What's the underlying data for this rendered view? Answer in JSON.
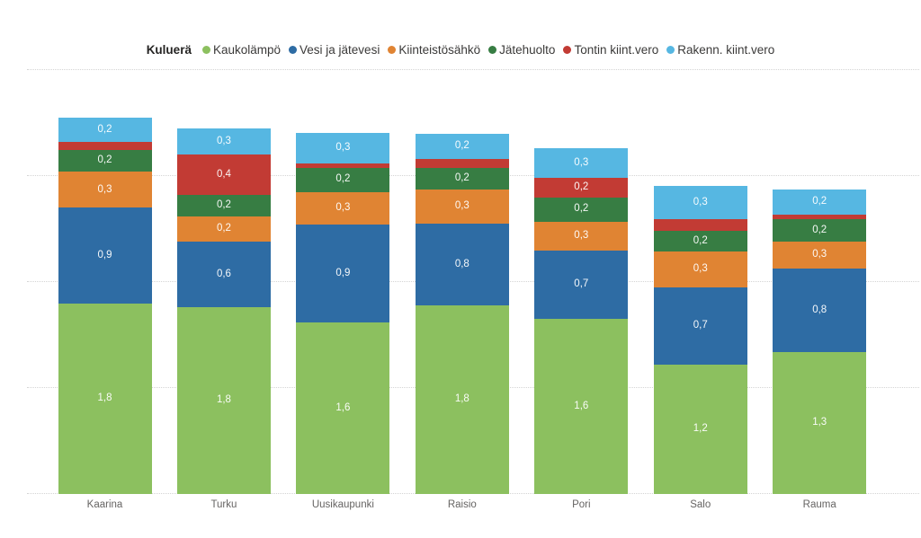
{
  "legend": {
    "title": "Kuluerä",
    "items": [
      {
        "label": "Kaukolämpö",
        "color": "#8CC05F"
      },
      {
        "label": "Vesi ja jätevesi",
        "color": "#2E6CA4"
      },
      {
        "label": "Kiinteistösähkö",
        "color": "#E08433"
      },
      {
        "label": "Jätehuolto",
        "color": "#377D43"
      },
      {
        "label": "Tontin kiint.vero",
        "color": "#C23B34"
      },
      {
        "label": "Rakenn. kiint.vero",
        "color": "#56B7E2"
      }
    ]
  },
  "chart_data": {
    "type": "bar",
    "variant": "stacked-column",
    "title": "",
    "legend_title": "Kuluerä",
    "legend_position": "top",
    "grid": true,
    "categories": [
      "Kaarina",
      "Turku",
      "Uusikaupunki",
      "Raisio",
      "Pori",
      "Salo",
      "Rauma"
    ],
    "series": [
      {
        "name": "Kaukolämpö",
        "color": "#8CC05F",
        "values": [
          1.8,
          1.76,
          1.62,
          1.78,
          1.65,
          1.22,
          1.34
        ],
        "labels": [
          "1,8",
          "1,8",
          "1,6",
          "1,8",
          "1,6",
          "1,2",
          "1,3"
        ]
      },
      {
        "name": "Vesi ja jätevesi",
        "color": "#2E6CA4",
        "values": [
          0.9,
          0.62,
          0.92,
          0.77,
          0.65,
          0.73,
          0.79
        ],
        "labels": [
          "0,9",
          "0,6",
          "0,9",
          "0,8",
          "0,7",
          "0,7",
          "0,8"
        ]
      },
      {
        "name": "Kiinteistösähkö",
        "color": "#E08433",
        "values": [
          0.34,
          0.24,
          0.31,
          0.32,
          0.27,
          0.34,
          0.25
        ],
        "labels": [
          "0,3",
          "0,2",
          "0,3",
          "0,3",
          "0,3",
          "0,3",
          "0,3"
        ]
      },
      {
        "name": "Jätehuolto",
        "color": "#377D43",
        "values": [
          0.21,
          0.2,
          0.23,
          0.21,
          0.23,
          0.19,
          0.21
        ],
        "labels": [
          "0,2",
          "0,2",
          "0,2",
          "0,2",
          "0,2",
          "0,2",
          "0,2"
        ]
      },
      {
        "name": "Tontin kiint.vero",
        "color": "#C23B34",
        "values": [
          0.07,
          0.38,
          0.04,
          0.08,
          0.18,
          0.11,
          0.05
        ],
        "labels": [
          "",
          "0,4",
          "",
          "",
          "0,2",
          "",
          ""
        ]
      },
      {
        "name": "Rakenn. kiint.vero",
        "color": "#56B7E2",
        "values": [
          0.23,
          0.25,
          0.29,
          0.24,
          0.28,
          0.32,
          0.23
        ],
        "labels": [
          "0,2",
          "0,3",
          "0,3",
          "0,2",
          "0,3",
          "0,3",
          "0,2"
        ]
      }
    ],
    "y_axis": {
      "min": 0,
      "max": 4,
      "gridline_step": 1,
      "tick_labels_visible": false
    },
    "x_axis": {
      "labels": [
        "Kaarina",
        "Turku",
        "Uusikaupunki",
        "Raisio",
        "Pori",
        "Salo",
        "Rauma"
      ]
    }
  }
}
